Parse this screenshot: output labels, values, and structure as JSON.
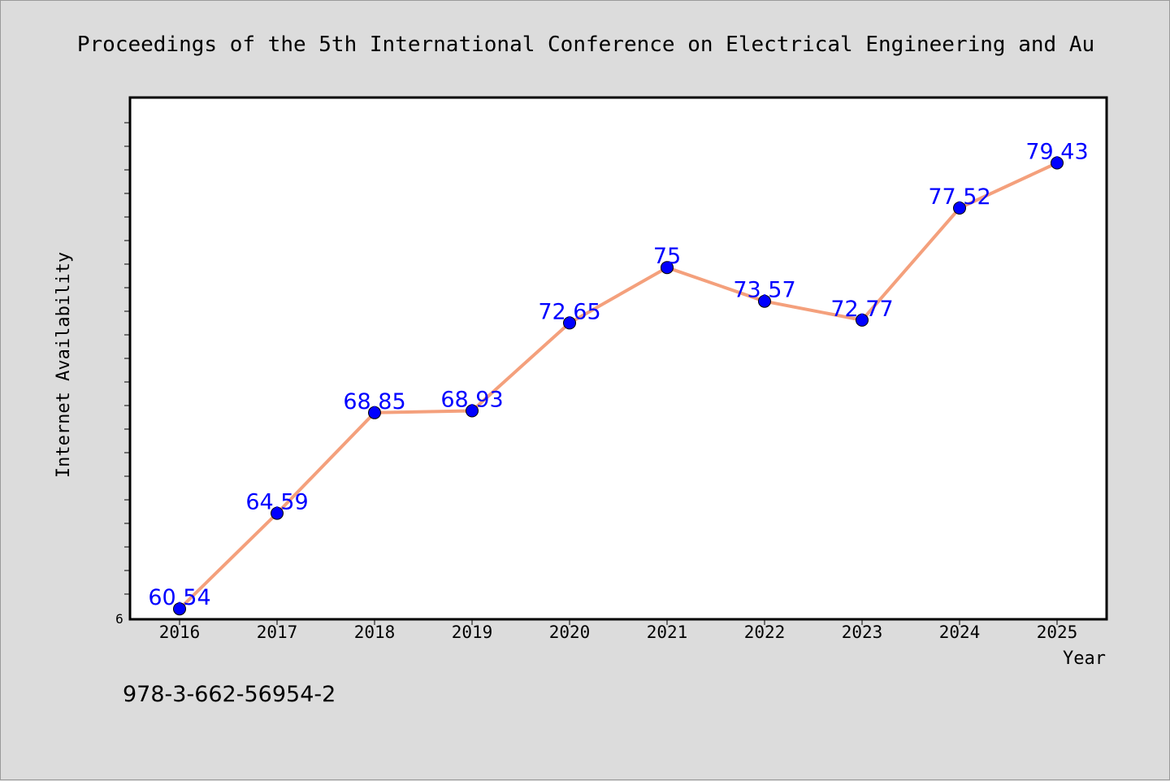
{
  "title": "Proceedings of the 5th International Conference on Electrical Engineering and Au",
  "footer": "978-3-662-56954-2",
  "colors": {
    "background": "#dcdcdc",
    "plot_background": "#ffffff",
    "line": "#f4a07c",
    "marker": "#0000ff",
    "data_label": "#0000ff"
  },
  "chart_data": {
    "type": "line",
    "xlabel": "Year",
    "ylabel": "Internet Availability",
    "categories": [
      "2016",
      "2017",
      "2018",
      "2019",
      "2020",
      "2021",
      "2022",
      "2023",
      "2024",
      "2025"
    ],
    "series": [
      {
        "values": [
          60.54,
          64.59,
          68.85,
          68.93,
          72.65,
          75,
          73.57,
          72.77,
          77.52,
          79.43
        ]
      }
    ],
    "data_labels": [
      "60.54",
      "64.59",
      "68.85",
      "68.93",
      "72.65",
      "75",
      "73.57",
      "72.77",
      "77.52",
      "79.43"
    ],
    "y_tick_label": "6",
    "ylim": [
      60.1,
      82.2
    ],
    "grid": false,
    "legend": "none"
  }
}
